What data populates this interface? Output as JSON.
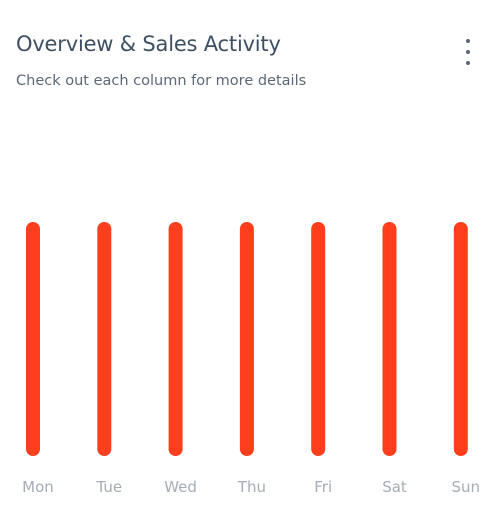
{
  "card": {
    "title": "Overview & Sales Activity",
    "subtitle": "Check out each column for more details",
    "menu_icon": "more-vertical-icon"
  },
  "colors": {
    "bar": "#ff3e1d",
    "title": "#3f4f63",
    "subtitle": "#5a6878",
    "tick_label": "#a5adb7"
  },
  "chart_data": {
    "type": "bar",
    "categories": [
      "Mon",
      "Tue",
      "Wed",
      "Thu",
      "Fri",
      "Sat",
      "Sun"
    ],
    "values": [
      100,
      100,
      100,
      100,
      100,
      100,
      100
    ],
    "ylim": [
      0,
      100
    ],
    "grid": false,
    "legend": "none"
  }
}
